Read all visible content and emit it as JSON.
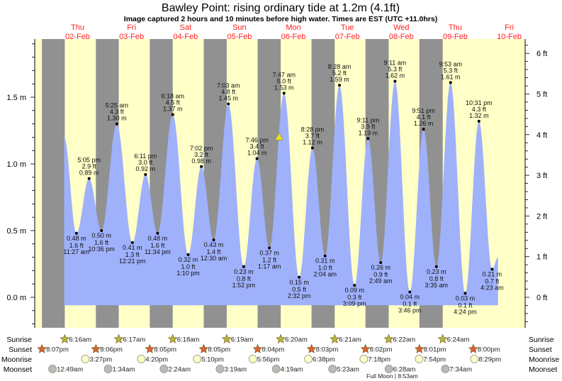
{
  "chart_data": {
    "type": "area",
    "title": "Bawley Point: rising  ordinary tide at 1.2m (4.1ft)",
    "subtitle": "Image captured 2 hours and 10 minutes before high water. Times are EST (UTC +11.0hrs)",
    "days": [
      {
        "name": "Thu",
        "date": "02-Feb"
      },
      {
        "name": "Fri",
        "date": "03-Feb"
      },
      {
        "name": "Sat",
        "date": "04-Feb"
      },
      {
        "name": "Sun",
        "date": "05-Feb"
      },
      {
        "name": "Mon",
        "date": "06-Feb"
      },
      {
        "name": "Tue",
        "date": "07-Feb"
      },
      {
        "name": "Wed",
        "date": "08-Feb"
      },
      {
        "name": "Thu",
        "date": "09-Feb"
      },
      {
        "name": "Fri",
        "date": "10-Feb"
      }
    ],
    "y_left": {
      "unit": "m",
      "ylim": [
        -0.2,
        1.9
      ],
      "ticks": [
        "0.0 m",
        "0.5 m",
        "1.0 m",
        "1.5 m"
      ],
      "tick_values": [
        0,
        0.5,
        1.0,
        1.5
      ]
    },
    "y_right": {
      "unit": "ft",
      "ticks": [
        "0 ft",
        "1 ft",
        "2 ft",
        "3 ft",
        "4 ft",
        "5 ft",
        "6 ft"
      ],
      "tick_values": [
        0,
        1,
        2,
        3,
        4,
        5,
        6
      ]
    },
    "series_start": {
      "day": 0,
      "time": "6:00 am",
      "m": 1.2
    },
    "series_end": {
      "day": 8,
      "time": "7:00 am",
      "m": 0.3
    },
    "tides": [
      {
        "day": 0,
        "type": "low",
        "time": "11:27 am",
        "m": 0.48,
        "m_label": "0.48 m",
        "ft": "1.6 ft"
      },
      {
        "day": 0,
        "type": "high",
        "time": "5:05 pm",
        "m": 0.89,
        "m_label": "0.89 m",
        "ft": "2.9 ft"
      },
      {
        "day": 0,
        "type": "low",
        "time": "10:36 pm",
        "m": 0.5,
        "m_label": "0.50 m",
        "ft": "1.6 ft"
      },
      {
        "day": 1,
        "type": "high",
        "time": "5:25 am",
        "m": 1.3,
        "m_label": "1.30 m",
        "ft": "4.3 ft"
      },
      {
        "day": 1,
        "type": "low",
        "time": "12:21 pm",
        "m": 0.41,
        "m_label": "0.41 m",
        "ft": "1.3 ft"
      },
      {
        "day": 1,
        "type": "high",
        "time": "6:11 pm",
        "m": 0.92,
        "m_label": "0.92 m",
        "ft": "3.0 ft"
      },
      {
        "day": 1,
        "type": "low",
        "time": "11:34 pm",
        "m": 0.48,
        "m_label": "0.48 m",
        "ft": "1.6 ft"
      },
      {
        "day": 2,
        "type": "high",
        "time": "6:18 am",
        "m": 1.37,
        "m_label": "1.37 m",
        "ft": "4.5 ft"
      },
      {
        "day": 2,
        "type": "low",
        "time": "1:10 pm",
        "m": 0.32,
        "m_label": "0.32 m",
        "ft": "1.0 ft"
      },
      {
        "day": 2,
        "type": "high",
        "time": "7:02 pm",
        "m": 0.98,
        "m_label": "0.98 m",
        "ft": "3.2 ft"
      },
      {
        "day": 3,
        "type": "low",
        "time": "12:30 am",
        "m": 0.43,
        "m_label": "0.43 m",
        "ft": "1.4 ft"
      },
      {
        "day": 3,
        "type": "high",
        "time": "7:03 am",
        "m": 1.45,
        "m_label": "1.45 m",
        "ft": "4.8 ft"
      },
      {
        "day": 3,
        "type": "low",
        "time": "1:52 pm",
        "m": 0.23,
        "m_label": "0.23 m",
        "ft": "0.8 ft"
      },
      {
        "day": 3,
        "type": "high",
        "time": "7:46 pm",
        "m": 1.04,
        "m_label": "1.04 m",
        "ft": "3.4 ft"
      },
      {
        "day": 4,
        "type": "low",
        "time": "1:17 am",
        "m": 0.37,
        "m_label": "0.37 m",
        "ft": "1.2 ft"
      },
      {
        "day": 4,
        "type": "high",
        "time": "7:47 am",
        "m": 1.53,
        "m_label": "1.53 m",
        "ft": "5.0 ft"
      },
      {
        "day": 4,
        "type": "low",
        "time": "2:32 pm",
        "m": 0.15,
        "m_label": "0.15 m",
        "ft": "0.5 ft"
      },
      {
        "day": 4,
        "type": "high",
        "time": "8:28 pm",
        "m": 1.12,
        "m_label": "1.12 m",
        "ft": "3.7 ft"
      },
      {
        "day": 5,
        "type": "low",
        "time": "2:04 am",
        "m": 0.31,
        "m_label": "0.31 m",
        "ft": "1.0 ft"
      },
      {
        "day": 5,
        "type": "high",
        "time": "8:28 am",
        "m": 1.59,
        "m_label": "1.59 m",
        "ft": "5.2 ft"
      },
      {
        "day": 5,
        "type": "low",
        "time": "3:09 pm",
        "m": 0.09,
        "m_label": "0.09 m",
        "ft": "0.3 ft"
      },
      {
        "day": 5,
        "type": "high",
        "time": "9:11 pm",
        "m": 1.19,
        "m_label": "1.19 m",
        "ft": "3.9 ft"
      },
      {
        "day": 6,
        "type": "low",
        "time": "2:49 am",
        "m": 0.26,
        "m_label": "0.26 m",
        "ft": "0.9 ft"
      },
      {
        "day": 6,
        "type": "high",
        "time": "9:11 am",
        "m": 1.62,
        "m_label": "1.62 m",
        "ft": "5.3 ft"
      },
      {
        "day": 6,
        "type": "low",
        "time": "3:46 pm",
        "m": 0.04,
        "m_label": "0.04 m",
        "ft": "0.1 ft"
      },
      {
        "day": 6,
        "type": "high",
        "time": "9:51 pm",
        "m": 1.26,
        "m_label": "1.26 m",
        "ft": "4.1 ft"
      },
      {
        "day": 7,
        "type": "low",
        "time": "3:35 am",
        "m": 0.23,
        "m_label": "0.23 m",
        "ft": "0.8 ft"
      },
      {
        "day": 7,
        "type": "high",
        "time": "9:53 am",
        "m": 1.61,
        "m_label": "1.61 m",
        "ft": "5.3 ft"
      },
      {
        "day": 7,
        "type": "low",
        "time": "4:24 pm",
        "m": 0.03,
        "m_label": "0.03 m",
        "ft": "0.1 ft"
      },
      {
        "day": 7,
        "type": "high",
        "time": "10:31 pm",
        "m": 1.32,
        "m_label": "1.32 m",
        "ft": "4.3 ft"
      },
      {
        "day": 8,
        "type": "low",
        "time": "4:23 am",
        "m": 0.21,
        "m_label": "0.21 m",
        "ft": "0.7 ft"
      }
    ],
    "current": {
      "day": 4,
      "time": "5:37 am",
      "m": 1.2
    },
    "rows": {
      "sunrise_label": "Sunrise",
      "sunset_label": "Sunset",
      "moonrise_label": "Moonrise",
      "moonset_label": "Moonset"
    },
    "sunrise": [
      {
        "day": 0,
        "time": "6:16am"
      },
      {
        "day": 1,
        "time": "6:17am"
      },
      {
        "day": 2,
        "time": "6:18am"
      },
      {
        "day": 3,
        "time": "6:19am"
      },
      {
        "day": 4,
        "time": "6:20am"
      },
      {
        "day": 5,
        "time": "6:21am"
      },
      {
        "day": 6,
        "time": "6:22am"
      },
      {
        "day": 7,
        "time": "6:24am"
      }
    ],
    "sunset": [
      {
        "day": -1,
        "time": "8:07pm"
      },
      {
        "day": 0,
        "time": "8:06pm"
      },
      {
        "day": 1,
        "time": "8:05pm"
      },
      {
        "day": 2,
        "time": "8:05pm"
      },
      {
        "day": 3,
        "time": "8:04pm"
      },
      {
        "day": 4,
        "time": "8:03pm"
      },
      {
        "day": 5,
        "time": "8:02pm"
      },
      {
        "day": 6,
        "time": "8:01pm"
      },
      {
        "day": 7,
        "time": "8:00pm"
      }
    ],
    "moonrise": [
      {
        "day": 0,
        "time": "3:27pm"
      },
      {
        "day": 1,
        "time": "4:20pm"
      },
      {
        "day": 2,
        "time": "5:10pm"
      },
      {
        "day": 3,
        "time": "5:56pm"
      },
      {
        "day": 4,
        "time": "6:38pm"
      },
      {
        "day": 5,
        "time": "7:18pm"
      },
      {
        "day": 6,
        "time": "7:54pm"
      },
      {
        "day": 7,
        "time": "8:29pm"
      }
    ],
    "moonset": [
      {
        "day": 0,
        "time": "12:49am"
      },
      {
        "day": 1,
        "time": "1:34am"
      },
      {
        "day": 2,
        "time": "2:24am"
      },
      {
        "day": 3,
        "time": "3:19am"
      },
      {
        "day": 4,
        "time": "4:19am"
      },
      {
        "day": 5,
        "time": "5:23am"
      },
      {
        "day": 6,
        "time": "6:28am"
      },
      {
        "day": 7,
        "time": "7:34am"
      }
    ],
    "moon_phase": {
      "day": 6,
      "time": "8:53am",
      "label": "Full Moon | 8:53am"
    },
    "night_bands_count": 8,
    "colors": {
      "day": "#ffffc8",
      "night": "#919191",
      "water": "#9fb1fb",
      "day_label": "#ff2020",
      "sunrise": "#b8b43a",
      "sunset": "#d8642e",
      "moonrise": "#ffffc8",
      "moonset": "#bdbab5",
      "current_marker": "#e8e030"
    }
  }
}
